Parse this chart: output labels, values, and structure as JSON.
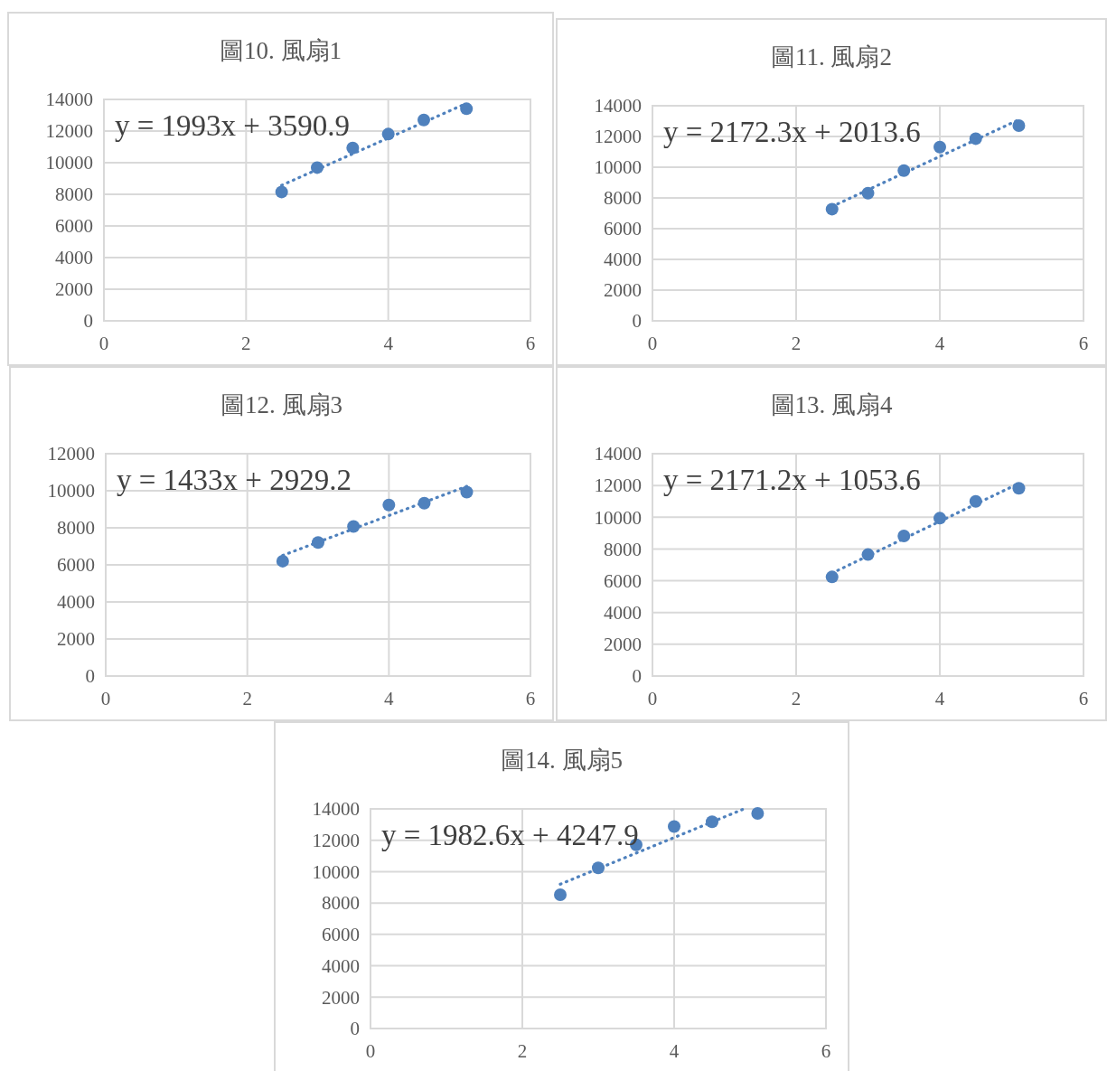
{
  "chart_data": [
    {
      "type": "scatter",
      "title": "圖10. 風扇1",
      "xlim": [
        0,
        6
      ],
      "xticks": [
        0,
        2,
        4,
        6
      ],
      "ylim": [
        0,
        14000
      ],
      "yticks": [
        0,
        2000,
        4000,
        6000,
        8000,
        10000,
        12000,
        14000
      ],
      "grid": true,
      "annotations": [
        "y = 1993x + 3590.9"
      ],
      "series": [
        {
          "color": "#4f81bd",
          "marker": "circle",
          "x": [
            2.5,
            3,
            3.5,
            4,
            4.5,
            5.1
          ],
          "values": [
            8150,
            9690,
            10930,
            11810,
            12700,
            13410
          ]
        },
        {
          "type": "line",
          "color": "#4f81bd",
          "line_style": "dotted",
          "x": [
            2.5,
            5.1
          ],
          "values": [
            8570,
            13750
          ]
        }
      ]
    },
    {
      "type": "scatter",
      "title": "圖11. 風扇2",
      "xlim": [
        0,
        6
      ],
      "xticks": [
        0,
        2,
        4,
        6
      ],
      "ylim": [
        0,
        14000
      ],
      "yticks": [
        0,
        2000,
        4000,
        6000,
        8000,
        10000,
        12000,
        14000
      ],
      "grid": true,
      "annotations": [
        "y = 2172.3x + 2013.6"
      ],
      "series": [
        {
          "color": "#4f81bd",
          "marker": "circle",
          "x": [
            2.5,
            3,
            3.5,
            4,
            4.5,
            5.1
          ],
          "values": [
            7270,
            8310,
            9780,
            11310,
            11860,
            12710
          ]
        },
        {
          "type": "line",
          "color": "#4f81bd",
          "line_style": "dotted",
          "x": [
            2.5,
            5.1
          ],
          "values": [
            7440,
            13090
          ]
        }
      ]
    },
    {
      "type": "scatter",
      "title": "圖12. 風扇3",
      "xlim": [
        0,
        6
      ],
      "xticks": [
        0,
        2,
        4,
        6
      ],
      "ylim": [
        0,
        12000
      ],
      "yticks": [
        0,
        2000,
        4000,
        6000,
        8000,
        10000,
        12000
      ],
      "grid": true,
      "annotations": [
        "y = 1433x + 2929.2"
      ],
      "series": [
        {
          "color": "#4f81bd",
          "marker": "circle",
          "x": [
            2.5,
            3,
            3.5,
            4,
            4.5,
            5.1
          ],
          "values": [
            6200,
            7210,
            8070,
            9230,
            9330,
            9930
          ]
        },
        {
          "type": "line",
          "color": "#4f81bd",
          "line_style": "dotted",
          "x": [
            2.5,
            5.1
          ],
          "values": [
            6510,
            10240
          ]
        }
      ]
    },
    {
      "type": "scatter",
      "title": "圖13. 風扇4",
      "xlim": [
        0,
        6
      ],
      "xticks": [
        0,
        2,
        4,
        6
      ],
      "ylim": [
        0,
        14000
      ],
      "yticks": [
        0,
        2000,
        4000,
        6000,
        8000,
        10000,
        12000,
        14000
      ],
      "grid": true,
      "annotations": [
        "y = 2171.2x + 1053.6"
      ],
      "series": [
        {
          "color": "#4f81bd",
          "marker": "circle",
          "x": [
            2.5,
            3,
            3.5,
            4,
            4.5,
            5.1
          ],
          "values": [
            6240,
            7650,
            8820,
            9940,
            11000,
            11820
          ]
        },
        {
          "type": "line",
          "color": "#4f81bd",
          "line_style": "dotted",
          "x": [
            2.5,
            5.1
          ],
          "values": [
            6480,
            12130
          ]
        }
      ]
    },
    {
      "type": "scatter",
      "title": "圖14. 風扇5",
      "xlim": [
        0,
        6
      ],
      "xticks": [
        0,
        2,
        4,
        6
      ],
      "ylim": [
        0,
        14000
      ],
      "yticks": [
        0,
        2000,
        4000,
        6000,
        8000,
        10000,
        12000,
        14000
      ],
      "grid": true,
      "annotations": [
        "y = 1982.6x + 4247.9"
      ],
      "series": [
        {
          "color": "#4f81bd",
          "marker": "circle",
          "x": [
            2.5,
            3,
            3.5,
            4,
            4.5,
            5.1
          ],
          "values": [
            8530,
            10240,
            11710,
            12880,
            13180,
            13710
          ]
        },
        {
          "type": "line",
          "color": "#4f81bd",
          "line_style": "dotted",
          "x": [
            2.5,
            4.9
          ],
          "values": [
            9200,
            13960
          ]
        }
      ]
    }
  ]
}
